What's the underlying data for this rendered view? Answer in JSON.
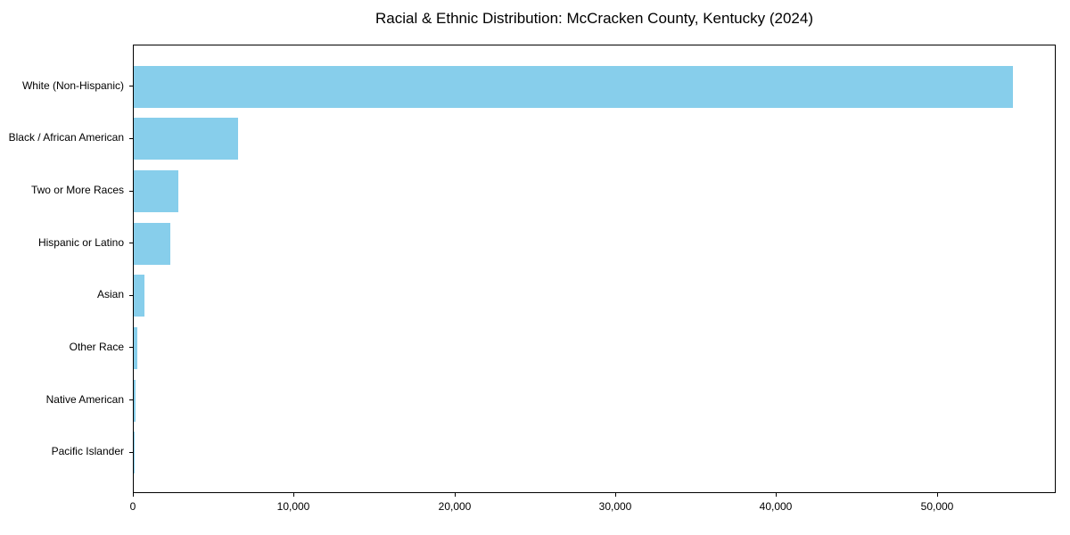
{
  "chart_data": {
    "type": "bar",
    "orientation": "horizontal",
    "title": "Racial & Ethnic Distribution: McCracken County, Kentucky (2024)",
    "categories": [
      "White (Non-Hispanic)",
      "Black / African American",
      "Two or More Races",
      "Hispanic or Latino",
      "Asian",
      "Other Race",
      "Native American",
      "Pacific Islander"
    ],
    "values": [
      54800,
      6500,
      2800,
      2300,
      650,
      250,
      100,
      30
    ],
    "xlabel": "",
    "ylabel": "",
    "xlim": [
      0,
      57400
    ],
    "xticks": [
      0,
      10000,
      20000,
      30000,
      40000,
      50000
    ],
    "bar_color": "#87CEEB",
    "axis_color": "#000000",
    "background_color": "#ffffff",
    "grid": false,
    "legend": false
  }
}
